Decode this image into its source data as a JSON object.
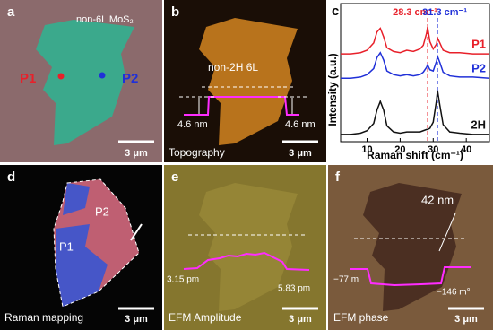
{
  "panels": [
    {
      "label": "a",
      "title": "non-6L MoS₂",
      "points": [
        "P1",
        "P2"
      ],
      "scale": "3 μm"
    },
    {
      "label": "b",
      "title": "non-2H 6L",
      "heights": [
        "4.6 nm",
        "4.6 nm"
      ],
      "caption": "Topography",
      "scale": "3 μm"
    },
    {
      "label": "c"
    },
    {
      "label": "d",
      "regions": [
        "P1",
        "P2"
      ],
      "caption": "Raman mapping",
      "scale": "3 μm"
    },
    {
      "label": "e",
      "values": [
        "3.15 pm",
        "5.83 pm"
      ],
      "caption": "EFM Amplitude",
      "scale": "3 μm"
    },
    {
      "label": "f",
      "thickness": "42 nm",
      "values": [
        "−77 m",
        "−146 m°"
      ],
      "caption": "EFM phase",
      "scale": "3 μm"
    }
  ],
  "chart_data": {
    "type": "line",
    "xlabel": "Raman shift  (cm⁻¹)",
    "ylabel": "Intensity (a.u.)",
    "x": [
      2,
      5,
      8,
      10,
      12,
      13,
      14,
      15,
      16,
      18,
      20,
      22,
      24,
      26,
      27,
      28,
      28.3,
      29,
      30,
      31,
      31.3,
      32,
      33,
      35,
      38,
      42,
      47
    ],
    "xlim": [
      2,
      47
    ],
    "xticks": [
      10,
      20,
      30,
      40
    ],
    "ylim": [
      0,
      10
    ],
    "series": [
      {
        "name": "P1",
        "color": "#e8202a",
        "values": [
          7.2,
          7.2,
          7.3,
          7.5,
          8.1,
          9.0,
          9.3,
          8.6,
          7.7,
          7.4,
          7.3,
          7.5,
          7.4,
          7.6,
          7.9,
          8.9,
          9.4,
          8.2,
          7.6,
          8.0,
          8.5,
          8.1,
          7.5,
          7.3,
          7.3,
          7.2,
          7.2
        ]
      },
      {
        "name": "P2",
        "color": "#2030d8",
        "values": [
          5.2,
          5.2,
          5.3,
          5.5,
          6.0,
          6.9,
          7.3,
          6.7,
          5.8,
          5.5,
          5.4,
          5.5,
          5.4,
          5.5,
          5.7,
          6.1,
          6.3,
          5.9,
          5.8,
          6.6,
          7.0,
          6.5,
          5.7,
          5.4,
          5.3,
          5.3,
          5.2
        ]
      },
      {
        "name": "2H",
        "color": "#111111",
        "values": [
          0.6,
          0.6,
          0.7,
          0.9,
          1.5,
          2.6,
          3.3,
          2.6,
          1.3,
          0.8,
          0.7,
          0.8,
          0.8,
          0.8,
          0.9,
          1.0,
          1.0,
          1.1,
          1.6,
          3.4,
          4.2,
          3.0,
          1.4,
          0.8,
          0.7,
          0.6,
          0.6
        ]
      }
    ],
    "annotations": [
      {
        "text": "28.3 cm⁻¹",
        "x": 28.3,
        "color": "#e8202a"
      },
      {
        "text": "31.3 cm⁻¹",
        "x": 31.3,
        "color": "#2030d8"
      }
    ]
  }
}
